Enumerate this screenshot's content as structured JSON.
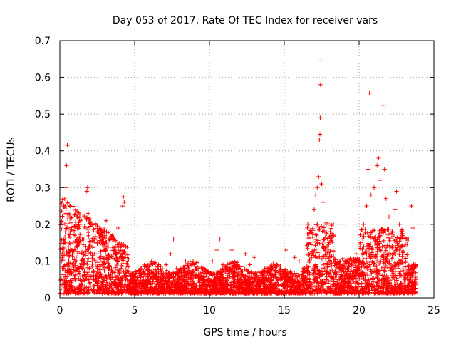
{
  "chart_data": {
    "type": "scatter",
    "title": "Day 053 of 2017, Rate Of TEC Index for receiver vars",
    "xlabel": "GPS time / hours",
    "ylabel": "ROTI / TECUs",
    "xlim": [
      0,
      25
    ],
    "ylim": [
      0,
      0.7
    ],
    "xticks": [
      0,
      5,
      10,
      15,
      20,
      25
    ],
    "xtick_labels": [
      "0",
      "5",
      "10",
      "15",
      "20",
      "25"
    ],
    "yticks": [
      0,
      0.1,
      0.2,
      0.3,
      0.4,
      0.5,
      0.6,
      0.7
    ],
    "ytick_labels": [
      "0",
      "0.1",
      "0.2",
      "0.3",
      "0.4",
      "0.5",
      "0.6",
      "0.7"
    ],
    "grid": true,
    "marker": "+",
    "marker_color": "#ff0000",
    "series": [
      {
        "name": "ROTI",
        "points": [
          [
            0.1,
            0.05
          ],
          [
            0.15,
            0.12
          ],
          [
            0.2,
            0.2
          ],
          [
            0.25,
            0.08
          ],
          [
            0.3,
            0.15
          ],
          [
            0.35,
            0.25
          ],
          [
            0.4,
            0.3
          ],
          [
            0.45,
            0.36
          ],
          [
            0.5,
            0.415
          ],
          [
            0.55,
            0.22
          ],
          [
            0.6,
            0.1
          ],
          [
            0.7,
            0.18
          ],
          [
            0.8,
            0.13
          ],
          [
            0.9,
            0.07
          ],
          [
            1.0,
            0.17
          ],
          [
            1.1,
            0.22
          ],
          [
            1.2,
            0.12
          ],
          [
            1.3,
            0.08
          ],
          [
            1.4,
            0.2
          ],
          [
            1.5,
            0.16
          ],
          [
            1.6,
            0.1
          ],
          [
            1.7,
            0.19
          ],
          [
            1.8,
            0.29
          ],
          [
            1.85,
            0.3
          ],
          [
            1.9,
            0.23
          ],
          [
            2.0,
            0.14
          ],
          [
            2.1,
            0.2
          ],
          [
            2.2,
            0.06
          ],
          [
            2.3,
            0.12
          ],
          [
            2.5,
            0.18
          ],
          [
            2.7,
            0.09
          ],
          [
            2.9,
            0.15
          ],
          [
            3.1,
            0.21
          ],
          [
            3.3,
            0.11
          ],
          [
            3.5,
            0.07
          ],
          [
            3.7,
            0.13
          ],
          [
            3.9,
            0.19
          ],
          [
            4.1,
            0.08
          ],
          [
            4.2,
            0.25
          ],
          [
            4.25,
            0.275
          ],
          [
            4.3,
            0.26
          ],
          [
            4.4,
            0.14
          ],
          [
            4.6,
            0.07
          ],
          [
            4.8,
            0.05
          ],
          [
            5.0,
            0.04
          ],
          [
            5.3,
            0.06
          ],
          [
            5.6,
            0.03
          ],
          [
            5.9,
            0.05
          ],
          [
            6.2,
            0.04
          ],
          [
            6.5,
            0.07
          ],
          [
            6.8,
            0.05
          ],
          [
            7.1,
            0.09
          ],
          [
            7.4,
            0.12
          ],
          [
            7.6,
            0.16
          ],
          [
            7.8,
            0.08
          ],
          [
            8.1,
            0.05
          ],
          [
            8.4,
            0.1
          ],
          [
            8.7,
            0.06
          ],
          [
            9.0,
            0.04
          ],
          [
            9.3,
            0.08
          ],
          [
            9.6,
            0.05
          ],
          [
            9.9,
            0.07
          ],
          [
            10.2,
            0.1
          ],
          [
            10.5,
            0.13
          ],
          [
            10.7,
            0.16
          ],
          [
            10.9,
            0.09
          ],
          [
            11.2,
            0.06
          ],
          [
            11.5,
            0.13
          ],
          [
            11.8,
            0.08
          ],
          [
            12.1,
            0.05
          ],
          [
            12.4,
            0.12
          ],
          [
            12.7,
            0.09
          ],
          [
            13.0,
            0.11
          ],
          [
            13.3,
            0.07
          ],
          [
            13.6,
            0.05
          ],
          [
            13.9,
            0.08
          ],
          [
            14.2,
            0.06
          ],
          [
            14.5,
            0.09
          ],
          [
            14.8,
            0.05
          ],
          [
            15.1,
            0.13
          ],
          [
            15.4,
            0.07
          ],
          [
            15.7,
            0.11
          ],
          [
            16.0,
            0.1
          ],
          [
            16.3,
            0.08
          ],
          [
            16.6,
            0.12
          ],
          [
            16.8,
            0.18
          ],
          [
            17.0,
            0.24
          ],
          [
            17.1,
            0.28
          ],
          [
            17.2,
            0.3
          ],
          [
            17.3,
            0.33
          ],
          [
            17.35,
            0.43
          ],
          [
            17.38,
            0.445
          ],
          [
            17.4,
            0.49
          ],
          [
            17.42,
            0.58
          ],
          [
            17.45,
            0.645
          ],
          [
            17.5,
            0.31
          ],
          [
            17.6,
            0.26
          ],
          [
            17.8,
            0.2
          ],
          [
            18.0,
            0.15
          ],
          [
            18.3,
            0.1
          ],
          [
            18.6,
            0.07
          ],
          [
            18.9,
            0.08
          ],
          [
            19.2,
            0.06
          ],
          [
            19.5,
            0.09
          ],
          [
            19.8,
            0.12
          ],
          [
            20.1,
            0.15
          ],
          [
            20.3,
            0.2
          ],
          [
            20.5,
            0.25
          ],
          [
            20.6,
            0.35
          ],
          [
            20.7,
            0.557
          ],
          [
            20.8,
            0.28
          ],
          [
            21.0,
            0.3
          ],
          [
            21.2,
            0.36
          ],
          [
            21.3,
            0.38
          ],
          [
            21.4,
            0.32
          ],
          [
            21.6,
            0.524
          ],
          [
            21.7,
            0.35
          ],
          [
            21.8,
            0.27
          ],
          [
            22.0,
            0.22
          ],
          [
            22.2,
            0.18
          ],
          [
            22.4,
            0.24
          ],
          [
            22.5,
            0.29
          ],
          [
            22.7,
            0.2
          ],
          [
            22.9,
            0.14
          ],
          [
            23.1,
            0.1
          ],
          [
            23.3,
            0.16
          ],
          [
            23.5,
            0.25
          ],
          [
            23.6,
            0.19
          ],
          [
            23.7,
            0.08
          ],
          [
            23.8,
            0.05
          ]
        ]
      }
    ]
  }
}
